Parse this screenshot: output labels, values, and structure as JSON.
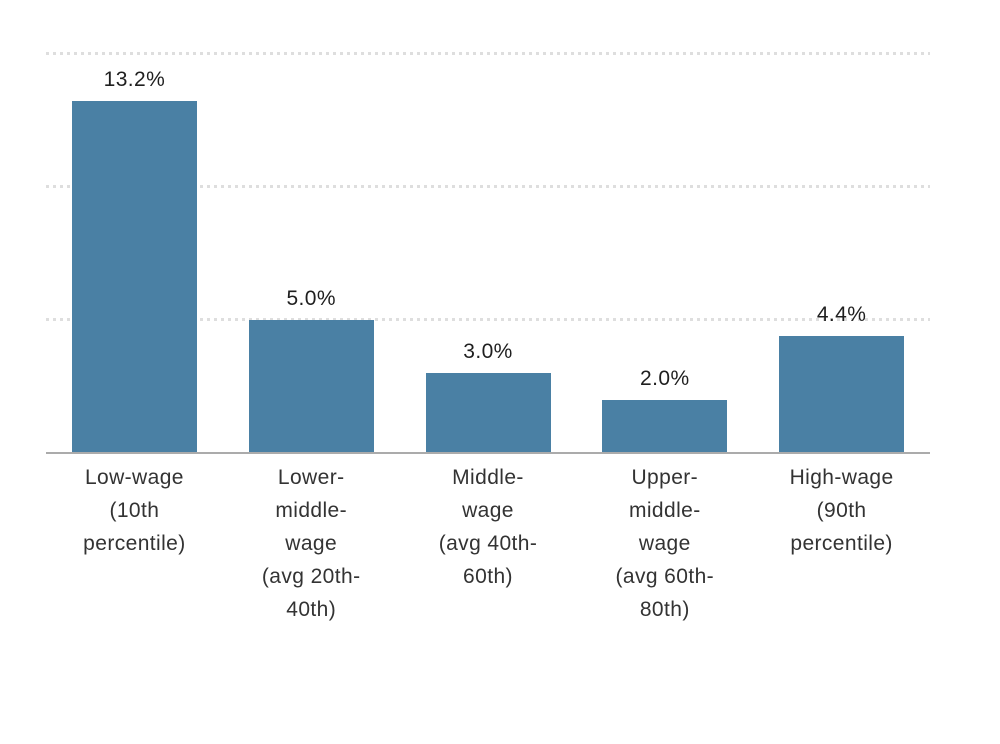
{
  "page": {
    "background": "#ffffff"
  },
  "chart_data": {
    "type": "bar",
    "title": "",
    "xlabel": "",
    "ylabel": "",
    "categories": [
      "Low-wage\n(10th\npercentile)",
      "Lower-\nmiddle-\nwage\n(avg 20th-\n40th)",
      "Middle-\nwage\n(avg 40th-\n60th)",
      "Upper-\nmiddle-\nwage\n(avg 60th-\n80th)",
      "High-wage\n(90th\npercentile)"
    ],
    "values": [
      13.2,
      5.0,
      3.0,
      2.0,
      4.4
    ],
    "value_labels": [
      "13.2%",
      "5.0%",
      "3.0%",
      "2.0%",
      "4.4%"
    ],
    "ylim": [
      0,
      15
    ],
    "gridlines_y": [
      5,
      10,
      15
    ],
    "grid_style": "dotted-horizontal",
    "legend": "none",
    "colors": {
      "bar": "#4a80a4",
      "axis_line": "#ababab",
      "gridline": "#dedede",
      "value_label": "#1f1f1f",
      "category_label": "#333333",
      "background": "#ffffff"
    }
  }
}
